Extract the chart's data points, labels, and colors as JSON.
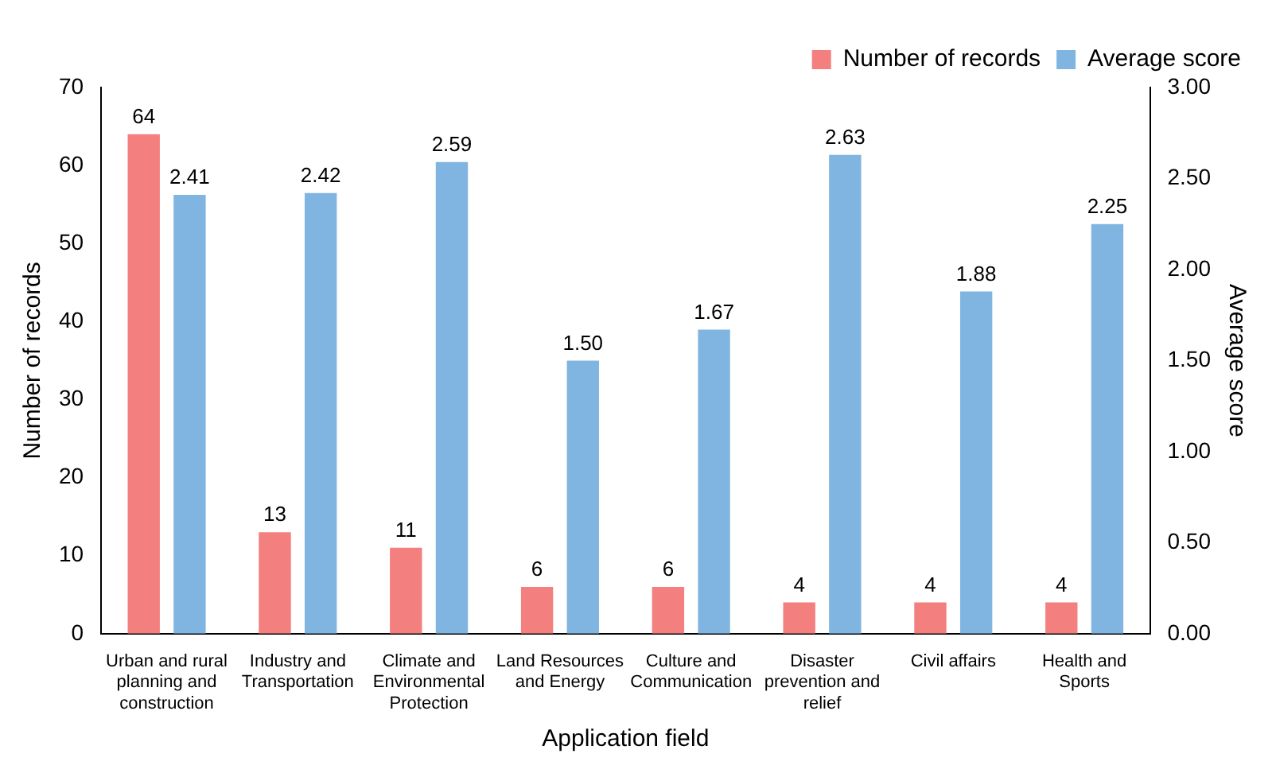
{
  "chart_data": {
    "type": "bar",
    "xlabel": "Application field",
    "ylabel": "Number of records",
    "y2label": "Average score",
    "categories": [
      "Urban and rural planning and construction",
      "Industry and Transportation",
      "Climate and Environmental Protection",
      "Land Resources and Energy",
      "Culture and Communication",
      "Disaster prevention and relief",
      "Civil affairs",
      "Health and Sports"
    ],
    "series": [
      {
        "name": "Number of records",
        "color": "#f47f7f",
        "values": [
          64,
          13,
          11,
          6,
          6,
          4,
          4,
          4
        ],
        "value_labels": [
          "64",
          "13",
          "11",
          "6",
          "6",
          "4",
          "4",
          "4"
        ]
      },
      {
        "name": "Average score",
        "color": "#7fb5e0",
        "axis": "y2",
        "values": [
          2.41,
          2.42,
          2.59,
          1.5,
          1.67,
          2.63,
          1.88,
          2.25
        ],
        "value_labels": [
          "2.41",
          "2.42",
          "2.59",
          "1.50",
          "1.67",
          "2.63",
          "1.88",
          "2.25"
        ]
      }
    ],
    "ylim": [
      0,
      70
    ],
    "yticks": [
      0,
      10,
      20,
      30,
      40,
      50,
      60,
      70
    ],
    "y2lim": [
      0,
      3
    ],
    "y2ticks": [
      {
        "value": 0,
        "label": "0.00"
      },
      {
        "value": 0.5,
        "label": "0.50"
      },
      {
        "value": 1,
        "label": "1.00"
      },
      {
        "value": 1.5,
        "label": "1.50"
      },
      {
        "value": 2,
        "label": "2.00"
      },
      {
        "value": 2.5,
        "label": "2.50"
      },
      {
        "value": 3,
        "label": "3.00"
      }
    ],
    "grid": false,
    "legend": "top right"
  }
}
